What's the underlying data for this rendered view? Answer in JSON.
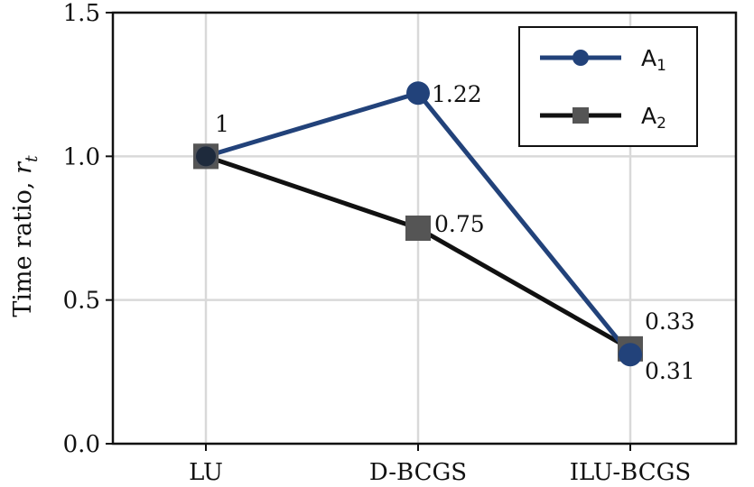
{
  "chart_data": {
    "type": "line",
    "categories": [
      "LU",
      "D-BCGS",
      "ILU-BCGS"
    ],
    "ylabel": "Time ratio, ",
    "ylabel_var": "r",
    "ylabel_sub": "t",
    "ylim": [
      0.0,
      1.5
    ],
    "yticks": [
      "0.0",
      "0.5",
      "1.0",
      "1.5"
    ],
    "grid": true,
    "legend_position": "top-right",
    "series": [
      {
        "name": "A",
        "name_sub": "1",
        "values": [
          1.0,
          1.22,
          0.31
        ],
        "labels": [
          "1",
          "1.22",
          "0.31"
        ],
        "color": "#22427a",
        "marker": "circle"
      },
      {
        "name": "A",
        "name_sub": "2",
        "values": [
          1.0,
          0.75,
          0.33
        ],
        "labels": [
          "",
          "0.75",
          "0.33"
        ],
        "color": "#111111",
        "marker_color": "#555555",
        "marker": "square"
      }
    ]
  }
}
